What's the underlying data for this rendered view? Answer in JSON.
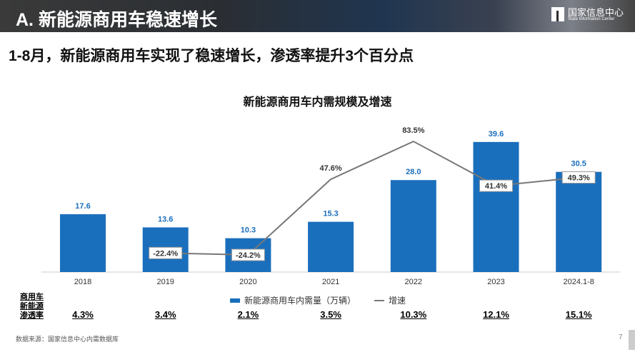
{
  "header": {
    "title": "A. 新能源商用车稳速增长",
    "logo_cn": "国家信息中心",
    "logo_en": "State Information Center"
  },
  "headline": "1-8月，新能源商用车实现了稳速增长，渗透率提升3个百分点",
  "chart_data": {
    "type": "bar+line",
    "title": "新能源商用车内需规模及增速",
    "categories": [
      "2018",
      "2019",
      "2020",
      "2021",
      "2022",
      "2023",
      "2024.1-8"
    ],
    "series": [
      {
        "name": "新能源商用车内需量（万辆）",
        "type": "bar",
        "color": "#1a6fbc",
        "values": [
          17.6,
          13.6,
          10.3,
          15.3,
          28.0,
          39.6,
          30.5
        ],
        "labels": [
          "17.6",
          "13.6",
          "10.3",
          "15.3",
          "28.0",
          "39.6",
          "30.5"
        ]
      },
      {
        "name": "增速",
        "type": "line",
        "color": "#777777",
        "values": [
          null,
          -22.4,
          -24.2,
          47.6,
          83.5,
          41.4,
          49.3
        ],
        "labels": [
          "",
          "-22.4%",
          "-24.2%",
          "47.6%",
          "83.5%",
          "41.4%",
          "49.3%"
        ]
      }
    ],
    "legend_position": "bottom",
    "grid": false
  },
  "penetration": {
    "label": "商用车\n新能源\n渗透率",
    "values": [
      "4.3%",
      "3.4%",
      "2.1%",
      "3.5%",
      "10.3%",
      "12.1%",
      "15.1%"
    ]
  },
  "source": "数据来源：国家信息中心内需数据库",
  "page": "7"
}
